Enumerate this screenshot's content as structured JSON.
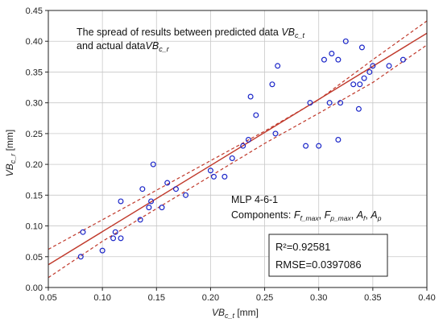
{
  "chart_data": {
    "type": "scatter",
    "annotation": {
      "line1_prefix": "The spread of results between predicted data ",
      "line1_var": "VB",
      "line1_sub": "c_t",
      "line2_prefix": "and actual data",
      "line2_var": "VB",
      "line2_sub": "c_r"
    },
    "xlabel": {
      "var": "VB",
      "sub": "c_t",
      "unit": " [mm]"
    },
    "ylabel": {
      "var": "VB",
      "sub": "c_r",
      "unit": " [mm]"
    },
    "xlim": [
      0.05,
      0.4
    ],
    "ylim": [
      0.0,
      0.45
    ],
    "x_ticks": [
      "0.05",
      "0.10",
      "0.15",
      "0.20",
      "0.25",
      "0.30",
      "0.35",
      "0.40"
    ],
    "y_ticks": [
      "0.00",
      "0.05",
      "0.10",
      "0.15",
      "0.20",
      "0.25",
      "0.30",
      "0.35",
      "0.40",
      "0.45"
    ],
    "grid": true,
    "model": {
      "name": "MLP 4-6-1",
      "components_label": "Components: ",
      "components": [
        {
          "var": "F",
          "sub": "f_max"
        },
        {
          "var": "F",
          "sub": "p_max"
        },
        {
          "var": "A",
          "sub": "f"
        },
        {
          "var": "A",
          "sub": "p"
        }
      ]
    },
    "stats": {
      "r2": "R²=0.92581",
      "rmse": "RMSE=0.0397086"
    },
    "fit_line": {
      "x": [
        0.05,
        0.4
      ],
      "y": [
        0.037,
        0.413
      ]
    },
    "confidence_upper": {
      "x": [
        0.05,
        0.1,
        0.15,
        0.2,
        0.25,
        0.3,
        0.35,
        0.4
      ],
      "y": [
        0.062,
        0.11,
        0.158,
        0.206,
        0.254,
        0.305,
        0.37,
        0.433
      ]
    },
    "confidence_lower": {
      "x": [
        0.05,
        0.1,
        0.15,
        0.2,
        0.25,
        0.3,
        0.35,
        0.4
      ],
      "y": [
        0.016,
        0.075,
        0.128,
        0.181,
        0.234,
        0.283,
        0.333,
        0.394
      ]
    },
    "points": [
      {
        "x": 0.08,
        "y": 0.05
      },
      {
        "x": 0.082,
        "y": 0.09
      },
      {
        "x": 0.1,
        "y": 0.06
      },
      {
        "x": 0.11,
        "y": 0.08
      },
      {
        "x": 0.112,
        "y": 0.09
      },
      {
        "x": 0.117,
        "y": 0.08
      },
      {
        "x": 0.117,
        "y": 0.14
      },
      {
        "x": 0.135,
        "y": 0.11
      },
      {
        "x": 0.137,
        "y": 0.16
      },
      {
        "x": 0.143,
        "y": 0.13
      },
      {
        "x": 0.145,
        "y": 0.14
      },
      {
        "x": 0.147,
        "y": 0.2
      },
      {
        "x": 0.155,
        "y": 0.13
      },
      {
        "x": 0.16,
        "y": 0.17
      },
      {
        "x": 0.168,
        "y": 0.16
      },
      {
        "x": 0.177,
        "y": 0.15
      },
      {
        "x": 0.2,
        "y": 0.19
      },
      {
        "x": 0.203,
        "y": 0.18
      },
      {
        "x": 0.213,
        "y": 0.18
      },
      {
        "x": 0.22,
        "y": 0.21
      },
      {
        "x": 0.23,
        "y": 0.23
      },
      {
        "x": 0.235,
        "y": 0.24
      },
      {
        "x": 0.237,
        "y": 0.31
      },
      {
        "x": 0.242,
        "y": 0.28
      },
      {
        "x": 0.257,
        "y": 0.33
      },
      {
        "x": 0.26,
        "y": 0.25
      },
      {
        "x": 0.262,
        "y": 0.36
      },
      {
        "x": 0.288,
        "y": 0.23
      },
      {
        "x": 0.292,
        "y": 0.3
      },
      {
        "x": 0.3,
        "y": 0.23
      },
      {
        "x": 0.305,
        "y": 0.37
      },
      {
        "x": 0.31,
        "y": 0.3
      },
      {
        "x": 0.312,
        "y": 0.38
      },
      {
        "x": 0.318,
        "y": 0.37
      },
      {
        "x": 0.318,
        "y": 0.24
      },
      {
        "x": 0.32,
        "y": 0.3
      },
      {
        "x": 0.325,
        "y": 0.4
      },
      {
        "x": 0.332,
        "y": 0.33
      },
      {
        "x": 0.337,
        "y": 0.29
      },
      {
        "x": 0.338,
        "y": 0.33
      },
      {
        "x": 0.34,
        "y": 0.39
      },
      {
        "x": 0.342,
        "y": 0.34
      },
      {
        "x": 0.347,
        "y": 0.35
      },
      {
        "x": 0.35,
        "y": 0.36
      },
      {
        "x": 0.365,
        "y": 0.36
      },
      {
        "x": 0.378,
        "y": 0.37
      }
    ],
    "colors": {
      "points": "#1a25c8",
      "fit": "#c0392b",
      "grid": "#c8c8c8"
    }
  }
}
